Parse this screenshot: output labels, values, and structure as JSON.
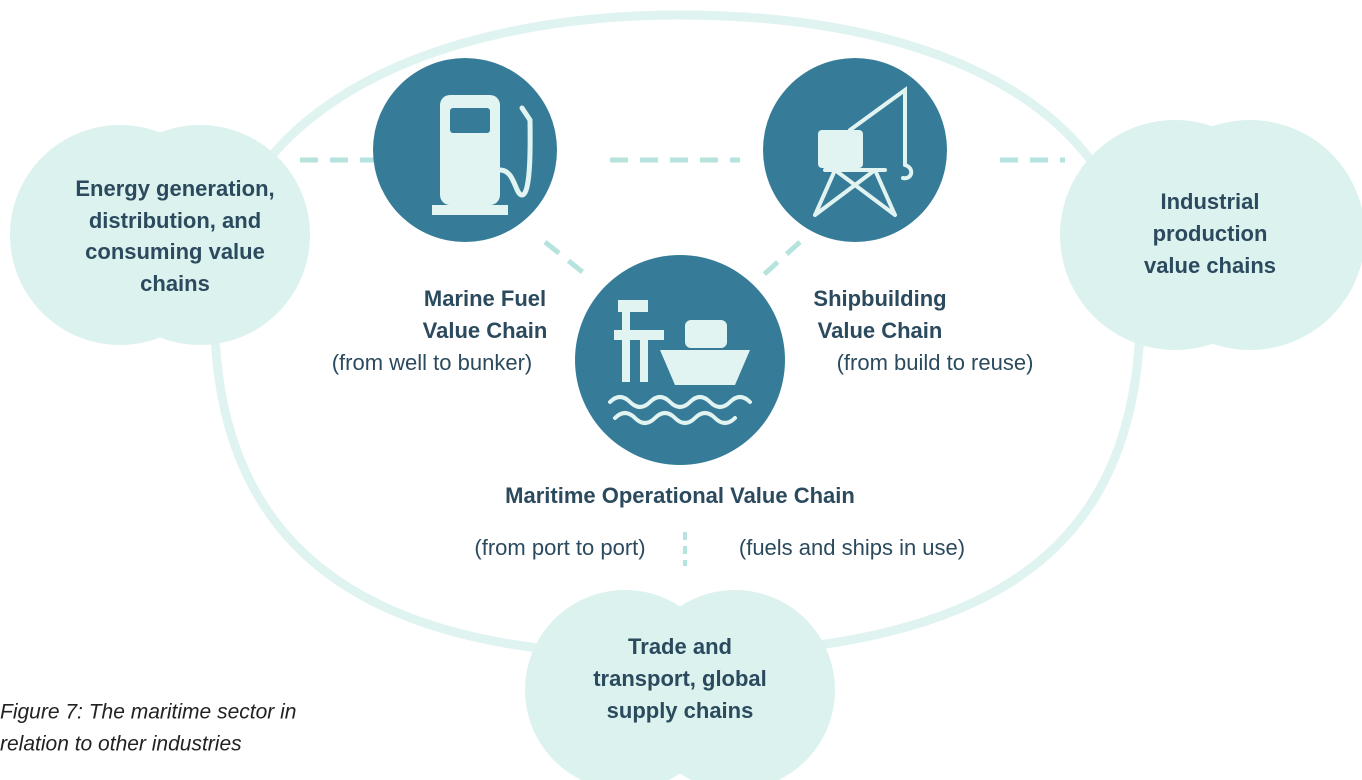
{
  "outer_chains": [
    {
      "lines": [
        "Energy generation,",
        "distribution, and",
        "consuming value",
        "chains"
      ]
    },
    {
      "lines": [
        "Industrial",
        "production",
        "value chains"
      ]
    },
    {
      "lines": [
        "Trade and",
        "transport, global",
        "supply chains"
      ]
    }
  ],
  "value_chains": [
    {
      "title": [
        "Marine Fuel",
        "Value Chain"
      ],
      "subtitle": "(from well to bunker)"
    },
    {
      "title": [
        "Shipbuilding",
        "Value Chain"
      ],
      "subtitle": "(from build to reuse)"
    }
  ],
  "operational": {
    "title": "Maritime Operational Value Chain",
    "left": "(from port to port)",
    "right": "(fuels and ships in use)"
  },
  "caption": [
    "Figure 7: The maritime sector in",
    "relation to other industries"
  ]
}
